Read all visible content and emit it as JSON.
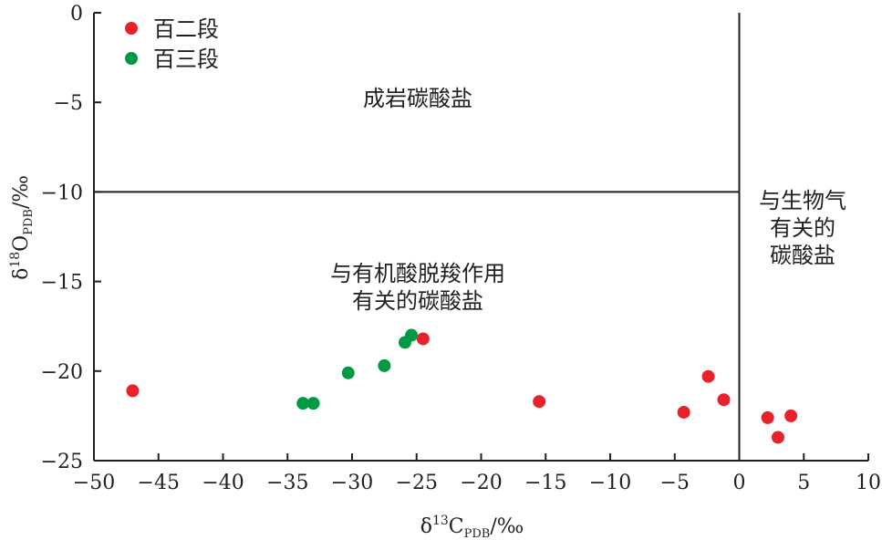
{
  "chart_data": {
    "type": "scatter",
    "xlabel": "δ13CPDB/‰",
    "ylabel": "δ18OPDB/‰",
    "xlabel_parts": {
      "delta": "δ",
      "sup": "13",
      "base": "C",
      "sub": "PDB",
      "unit": "/‰"
    },
    "ylabel_parts": {
      "delta": "δ",
      "sup": "18",
      "base": "O",
      "sub": "PDB",
      "unit": "/‰"
    },
    "xlim": [
      -50,
      10
    ],
    "ylim": [
      -25,
      0
    ],
    "xticks": [
      -50,
      -45,
      -40,
      -35,
      -30,
      -25,
      -20,
      -15,
      -10,
      -5,
      0,
      5,
      10
    ],
    "xtick_labels": [
      "−50",
      "−45",
      "−40",
      "−35",
      "−30",
      "−25",
      "−20",
      "−15",
      "−10",
      "−5",
      "0",
      "5",
      "10"
    ],
    "yticks": [
      0,
      -5,
      -10,
      -15,
      -20,
      -25
    ],
    "ytick_labels": [
      "0",
      "−5",
      "−10",
      "−15",
      "−20",
      "−25"
    ],
    "grid": false,
    "legend_position": "top-left",
    "series": [
      {
        "name": "百二段",
        "color": "#e8212b",
        "points": [
          [
            -47.0,
            -21.1
          ],
          [
            -24.5,
            -18.2
          ],
          [
            -15.5,
            -21.7
          ],
          [
            -4.3,
            -22.3
          ],
          [
            -2.4,
            -20.3
          ],
          [
            -1.2,
            -21.6
          ],
          [
            2.2,
            -22.6
          ],
          [
            4.0,
            -22.5
          ],
          [
            3.0,
            -23.7
          ]
        ]
      },
      {
        "name": "百三段",
        "color": "#009944",
        "points": [
          [
            -33.8,
            -21.8
          ],
          [
            -33.0,
            -21.8
          ],
          [
            -30.3,
            -20.1
          ],
          [
            -27.5,
            -19.7
          ],
          [
            -25.9,
            -18.4
          ],
          [
            -25.4,
            -18.0
          ]
        ]
      }
    ],
    "boundaries": {
      "horizontal_y": -10,
      "vertical_x": 0
    },
    "regions": [
      {
        "name": "region-diagenetic",
        "lines": [
          "成岩碳酸盐"
        ]
      },
      {
        "name": "region-organic-acid",
        "lines": [
          "与有机酸脱羧作用",
          "有关的碳酸盐"
        ]
      },
      {
        "name": "region-biogas",
        "lines": [
          "与生物气",
          "有关的",
          "碳酸盐"
        ]
      }
    ]
  }
}
